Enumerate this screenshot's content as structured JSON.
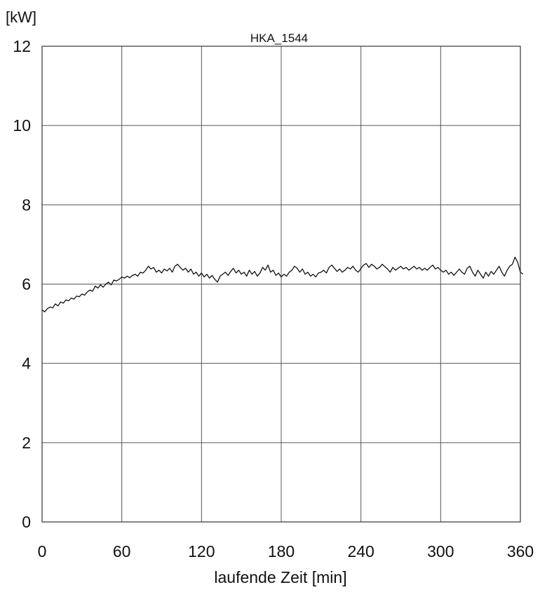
{
  "chart_data": {
    "type": "line",
    "title": "HKA_1544",
    "ylabel": "[kW]",
    "xlabel": "laufende Zeit [min]",
    "xlim": [
      0,
      360
    ],
    "ylim": [
      0,
      12
    ],
    "xticks": [
      0,
      60,
      120,
      180,
      240,
      300,
      360
    ],
    "yticks": [
      0,
      2,
      4,
      6,
      8,
      10,
      12
    ],
    "xtick_labels": [
      "0",
      "60",
      "120",
      "180",
      "240",
      "300",
      "360"
    ],
    "ytick_labels": [
      "0",
      "2",
      "4",
      "6",
      "8",
      "10",
      "12"
    ],
    "grid": true,
    "series": [
      {
        "x": [
          0,
          2,
          4,
          6,
          8,
          10,
          12,
          14,
          16,
          18,
          20,
          22,
          24,
          26,
          28,
          30,
          32,
          34,
          36,
          38,
          40,
          42,
          44,
          46,
          48,
          50,
          52,
          54,
          56,
          58,
          60,
          62,
          64,
          66,
          68,
          70,
          72,
          74,
          76,
          78,
          80,
          82,
          84,
          86,
          88,
          90,
          92,
          94,
          96,
          98,
          100,
          102,
          104,
          106,
          108,
          110,
          112,
          114,
          116,
          118,
          120,
          122,
          124,
          126,
          128,
          130,
          132,
          134,
          136,
          138,
          140,
          142,
          144,
          146,
          148,
          150,
          152,
          154,
          156,
          158,
          160,
          162,
          164,
          166,
          168,
          170,
          172,
          174,
          176,
          178,
          180,
          182,
          184,
          186,
          188,
          190,
          192,
          194,
          196,
          198,
          200,
          202,
          204,
          206,
          208,
          210,
          212,
          214,
          216,
          218,
          220,
          222,
          224,
          226,
          228,
          230,
          232,
          234,
          236,
          238,
          240,
          242,
          244,
          246,
          248,
          250,
          252,
          254,
          256,
          258,
          260,
          262,
          264,
          266,
          268,
          270,
          272,
          274,
          276,
          278,
          280,
          282,
          284,
          286,
          288,
          290,
          292,
          294,
          296,
          298,
          300,
          302,
          304,
          306,
          308,
          310,
          312,
          314,
          316,
          318,
          320,
          322,
          324,
          326,
          328,
          330,
          332,
          334,
          336,
          338,
          340,
          342,
          344,
          346,
          348,
          350,
          352,
          354,
          356,
          358,
          360,
          362
        ],
        "values": [
          5.35,
          5.3,
          5.38,
          5.42,
          5.4,
          5.5,
          5.45,
          5.55,
          5.52,
          5.6,
          5.58,
          5.65,
          5.62,
          5.7,
          5.68,
          5.75,
          5.72,
          5.8,
          5.85,
          5.82,
          5.95,
          5.9,
          5.98,
          5.92,
          6.0,
          6.05,
          5.98,
          6.1,
          6.08,
          6.12,
          6.18,
          6.15,
          6.2,
          6.16,
          6.22,
          6.25,
          6.2,
          6.3,
          6.28,
          6.35,
          6.45,
          6.38,
          6.42,
          6.3,
          6.35,
          6.28,
          6.38,
          6.33,
          6.4,
          6.3,
          6.45,
          6.5,
          6.42,
          6.35,
          6.4,
          6.3,
          6.38,
          6.25,
          6.3,
          6.2,
          6.28,
          6.18,
          6.25,
          6.15,
          6.22,
          6.12,
          6.05,
          6.2,
          6.25,
          6.3,
          6.22,
          6.32,
          6.4,
          6.28,
          6.35,
          6.25,
          6.3,
          6.2,
          6.35,
          6.25,
          6.32,
          6.2,
          6.28,
          6.42,
          6.35,
          6.48,
          6.3,
          6.35,
          6.22,
          6.28,
          6.18,
          6.25,
          6.2,
          6.3,
          6.35,
          6.45,
          6.4,
          6.3,
          6.38,
          6.25,
          6.3,
          6.2,
          6.25,
          6.18,
          6.28,
          6.3,
          6.35,
          6.28,
          6.42,
          6.48,
          6.4,
          6.32,
          6.38,
          6.3,
          6.35,
          6.42,
          6.38,
          6.45,
          6.35,
          6.3,
          6.4,
          6.48,
          6.52,
          6.42,
          6.5,
          6.45,
          6.38,
          6.42,
          6.5,
          6.44,
          6.38,
          6.3,
          6.42,
          6.35,
          6.4,
          6.45,
          6.38,
          6.42,
          6.35,
          6.4,
          6.45,
          6.38,
          6.42,
          6.35,
          6.4,
          6.35,
          6.42,
          6.48,
          6.38,
          6.42,
          6.35,
          6.3,
          6.35,
          6.25,
          6.3,
          6.22,
          6.3,
          6.38,
          6.3,
          6.25,
          6.4,
          6.45,
          6.3,
          6.2,
          6.35,
          6.25,
          6.15,
          6.3,
          6.2,
          6.32,
          6.25,
          6.35,
          6.45,
          6.3,
          6.2,
          6.35,
          6.45,
          6.5,
          6.68,
          6.55,
          6.3,
          6.25
        ]
      }
    ]
  }
}
